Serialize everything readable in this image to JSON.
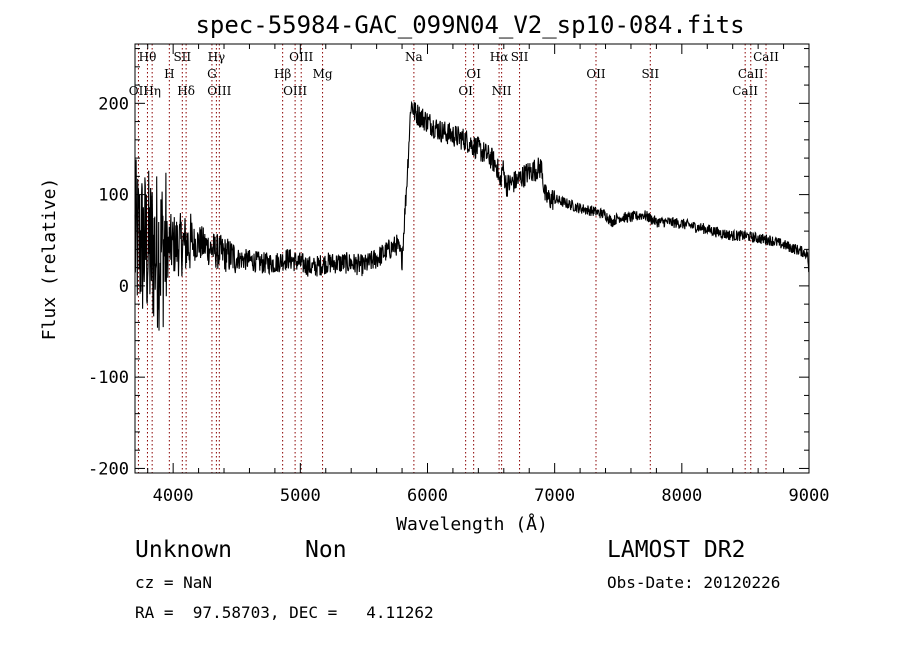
{
  "chart_data": {
    "type": "line",
    "title": "spec-55984-GAC_099N04_V2_sp10-084.fits",
    "xlabel": "Wavelength (Å)",
    "ylabel": "Flux (relative)",
    "xlim": [
      3700,
      9000
    ],
    "ylim": [
      -205,
      265
    ],
    "xticks": [
      4000,
      5000,
      6000,
      7000,
      8000,
      9000
    ],
    "yticks": [
      -200,
      -100,
      0,
      100,
      200
    ],
    "grid": false,
    "line_color": "#000000",
    "marker_color": "#8b0000",
    "spectrum_anchors": {
      "x": [
        3700,
        3760,
        3820,
        3900,
        4000,
        4100,
        4200,
        4300,
        4400,
        4500,
        4600,
        4700,
        4800,
        4900,
        5000,
        5100,
        5200,
        5300,
        5400,
        5500,
        5600,
        5700,
        5760,
        5800,
        5840,
        5870,
        5900,
        6000,
        6100,
        6200,
        6300,
        6400,
        6500,
        6550,
        6570,
        6590,
        6620,
        6700,
        6800,
        6900,
        6920,
        6950,
        7000,
        7100,
        7200,
        7300,
        7400,
        7450,
        7500,
        7600,
        7700,
        7800,
        7900,
        8000,
        8100,
        8200,
        8300,
        8400,
        8500,
        8600,
        8700,
        8800,
        8900,
        8990,
        9000
      ],
      "y": [
        50,
        45,
        40,
        40,
        45,
        45,
        48,
        40,
        35,
        30,
        28,
        25,
        25,
        30,
        25,
        20,
        25,
        25,
        25,
        22,
        30,
        40,
        45,
        30,
        120,
        200,
        190,
        180,
        170,
        165,
        160,
        150,
        140,
        130,
        110,
        130,
        110,
        115,
        125,
        130,
        100,
        95,
        95,
        90,
        85,
        82,
        78,
        70,
        75,
        75,
        78,
        70,
        70,
        68,
        65,
        62,
        58,
        55,
        55,
        52,
        50,
        45,
        40,
        35,
        5
      ]
    },
    "noise_amplitude_note": "",
    "lines": [
      {
        "label": "Hθ",
        "x": 3798,
        "row": 0
      },
      {
        "label": "SII",
        "x": 4072,
        "row": 0
      },
      {
        "label": "Hγ",
        "x": 4340,
        "row": 0
      },
      {
        "label": "OIII",
        "x": 5007,
        "row": 0
      },
      {
        "label": "Na",
        "x": 5893,
        "row": 0
      },
      {
        "label": "Hα",
        "x": 6563,
        "row": 0
      },
      {
        "label": "SII",
        "x": 6724,
        "row": 0
      },
      {
        "label": "CaII",
        "x": 8662,
        "row": 0
      },
      {
        "label": "H",
        "x": 3970,
        "row": 1
      },
      {
        "label": "G",
        "x": 4305,
        "row": 1
      },
      {
        "label": "Hβ",
        "x": 4861,
        "row": 1
      },
      {
        "label": "Mg",
        "x": 5175,
        "row": 1
      },
      {
        "label": "OI",
        "x": 6363,
        "row": 1
      },
      {
        "label": "OII",
        "x": 7325,
        "row": 1
      },
      {
        "label": "SII",
        "x": 7752,
        "row": 1
      },
      {
        "label": "CaII",
        "x": 8542,
        "row": 1
      },
      {
        "label": "OII",
        "x": 3727,
        "row": 2
      },
      {
        "label": "Hη",
        "x": 3835,
        "row": 2
      },
      {
        "label": "Hδ",
        "x": 4102,
        "row": 2
      },
      {
        "label": "OIII",
        "x": 4363,
        "row": 2
      },
      {
        "label": "OIII",
        "x": 4959,
        "row": 2
      },
      {
        "label": "OI",
        "x": 6300,
        "row": 2
      },
      {
        "label": "NII",
        "x": 6583,
        "row": 2
      },
      {
        "label": "CaII",
        "x": 8498,
        "row": 2
      }
    ]
  },
  "footer": {
    "class_label": "Unknown",
    "subclass_label": "Non",
    "survey": "LAMOST DR2",
    "cz": "cz = NaN",
    "obs_date": "Obs-Date: 20120226",
    "coords": "RA =  97.58703, DEC =   4.11262"
  }
}
